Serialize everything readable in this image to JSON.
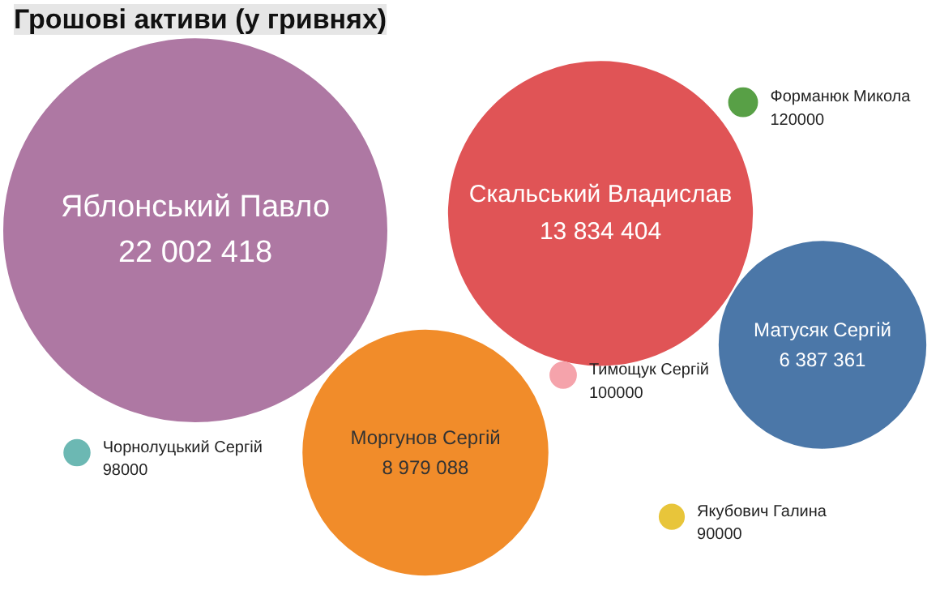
{
  "chart_data": {
    "type": "other",
    "title": "Грошові активи (у гривнях)",
    "categories": [
      "Яблонський Павло",
      "Скальський Владислав",
      "Форманюк Микола",
      "Матусяк Сергій",
      "Тимощук Сергій",
      "Чорнолуцький Сергій",
      "Моргунов Сергій",
      "Якубович Галина"
    ],
    "values": [
      22002418,
      13834404,
      120000,
      6387361,
      100000,
      98000,
      8979088,
      90000
    ],
    "value_labels": [
      "22 002 418",
      "13 834 404",
      "120000",
      "6 387 361",
      "100000",
      "98000",
      "8 979 088",
      "90000"
    ],
    "colors": [
      "#ae78a3",
      "#e05456",
      "#58a046",
      "#4b77a8",
      "#f5a3ab",
      "#6cb8b3",
      "#f18c2a",
      "#e8c53a"
    ]
  }
}
